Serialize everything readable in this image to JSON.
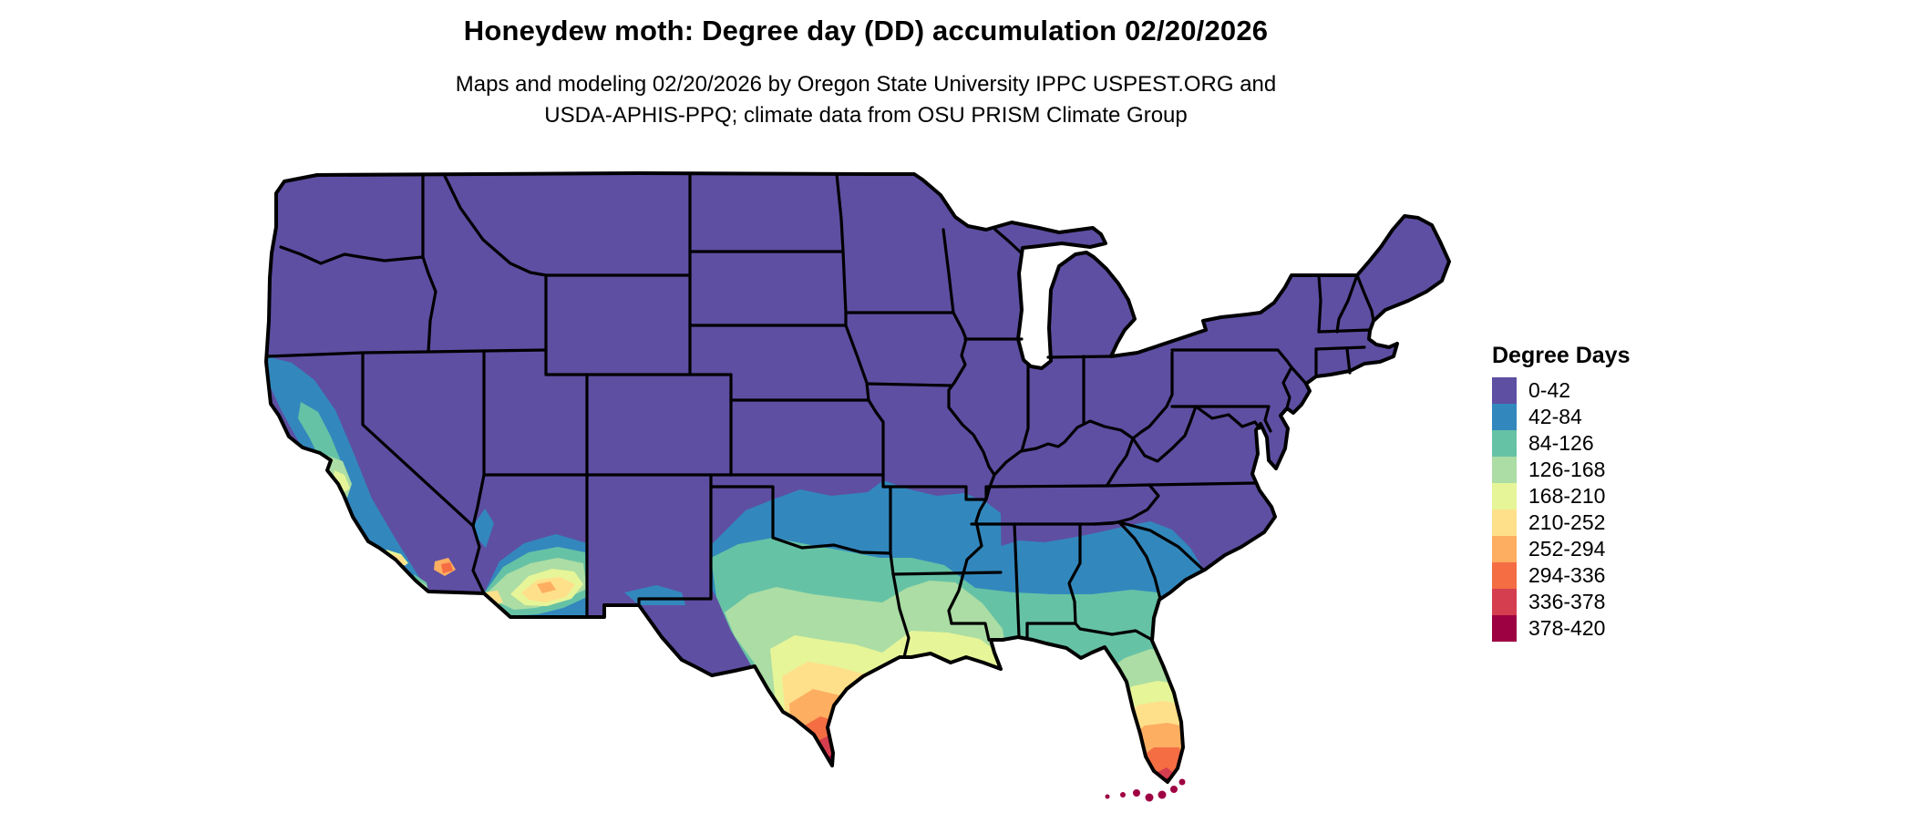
{
  "title": "Honeydew moth: Degree day (DD) accumulation 02/20/2026",
  "subtitle": {
    "line1": "Maps and modeling 02/20/2026 by Oregon State University IPPC USPEST.ORG and",
    "line2": "USDA-APHIS-PPQ; climate data from OSU PRISM Climate Group"
  },
  "legend": {
    "title": "Degree Days",
    "classes": [
      {
        "label": "0-42",
        "color": "#5e4fa2"
      },
      {
        "label": "42-84",
        "color": "#3288bd"
      },
      {
        "label": "84-126",
        "color": "#66c2a5"
      },
      {
        "label": "126-168",
        "color": "#abdda4"
      },
      {
        "label": "168-210",
        "color": "#e6f598"
      },
      {
        "label": "210-252",
        "color": "#fee08b"
      },
      {
        "label": "252-294",
        "color": "#fdae61"
      },
      {
        "label": "294-336",
        "color": "#f46d43"
      },
      {
        "label": "336-378",
        "color": "#d53e4f"
      },
      {
        "label": "378-420",
        "color": "#9e0142"
      }
    ]
  },
  "map": {
    "region": "Continental United States",
    "base_color": "#5e4fa2",
    "state_border_color": "#000000",
    "background_color": "#ffffff",
    "water_color": "#ffffff"
  },
  "chart_data": {
    "type": "choropleth-map",
    "variable": "Degree day (DD) accumulation",
    "species": "Honeydew moth",
    "date": "02/20/2026",
    "classes": [
      "0-42",
      "42-84",
      "84-126",
      "126-168",
      "168-210",
      "210-252",
      "252-294",
      "294-336",
      "336-378",
      "378-420"
    ],
    "palette": [
      "#5e4fa2",
      "#3288bd",
      "#66c2a5",
      "#abdda4",
      "#e6f598",
      "#fee08b",
      "#fdae61",
      "#f46d43",
      "#d53e4f",
      "#9e0142"
    ],
    "legend_position": "right",
    "regional_pattern": {
      "0-42": "Most of CONUS: Northwest, Rockies, northern Plains, Midwest, Northeast, Appalachians, west Texas",
      "42-84": "Coastal and valley California, southern Nevada, Oklahoma and north Texas, southern Arkansas, central Mississippi-Alabama-Georgia band, coastal South Carolina",
      "84-126": "California Central Valley core, central Arizona, central Texas, northern Louisiana, Gulf-state coastal band, Florida panhandle",
      "126-168": "South-central Texas, most of Louisiana, southern Arizona, north-central Florida peninsula",
      "168-210": "Texas coastal plain, southern Louisiana, Phoenix area Arizona, central Florida",
      "210-252": "South Texas, central-south Florida",
      "252-294": "Deep south Texas, Imperial Valley California, southern Florida",
      "294-336": "Rio Grande Valley Texas, Miami and southwest Florida",
      "336-378": "Extreme southern tip of Texas, southern tip of Florida",
      "378-420": "Florida Keys"
    }
  }
}
